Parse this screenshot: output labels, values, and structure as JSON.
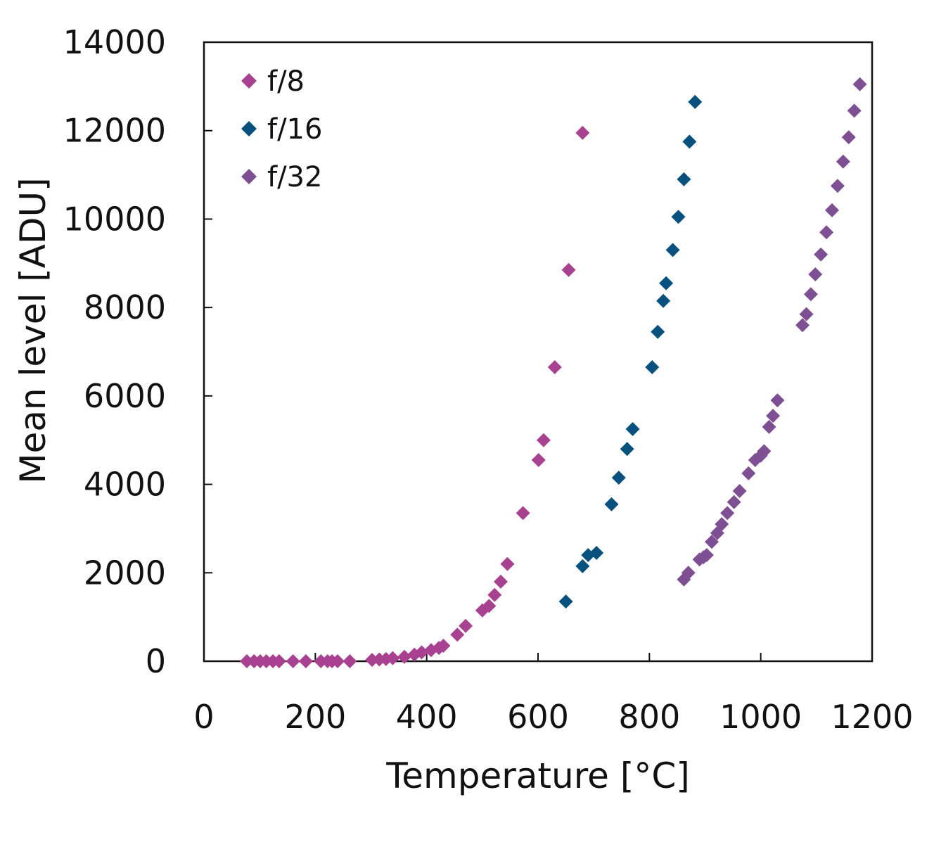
{
  "chart_data": {
    "type": "scatter",
    "xlabel": "Temperature [°C]",
    "ylabel": "Mean level [ADU]",
    "xlim": [
      0,
      1200
    ],
    "ylim": [
      0,
      14000
    ],
    "xticks": [
      0,
      200,
      400,
      600,
      800,
      1000,
      1200
    ],
    "yticks": [
      0,
      2000,
      4000,
      6000,
      8000,
      10000,
      12000,
      14000
    ],
    "grid": false,
    "legend_position": "top-left",
    "marker": "diamond",
    "series": [
      {
        "name": "f/8",
        "color": "#a8418f",
        "points": [
          [
            77,
            0
          ],
          [
            90,
            0
          ],
          [
            101,
            0
          ],
          [
            112,
            0
          ],
          [
            124,
            0
          ],
          [
            135,
            0
          ],
          [
            160,
            0
          ],
          [
            183,
            0
          ],
          [
            210,
            0
          ],
          [
            222,
            0
          ],
          [
            230,
            0
          ],
          [
            240,
            0
          ],
          [
            262,
            0
          ],
          [
            302,
            30
          ],
          [
            315,
            40
          ],
          [
            327,
            50
          ],
          [
            339,
            70
          ],
          [
            360,
            100
          ],
          [
            378,
            150
          ],
          [
            391,
            200
          ],
          [
            408,
            250
          ],
          [
            422,
            300
          ],
          [
            430,
            350
          ],
          [
            455,
            600
          ],
          [
            470,
            800
          ],
          [
            500,
            1150
          ],
          [
            512,
            1250
          ],
          [
            522,
            1500
          ],
          [
            533,
            1800
          ],
          [
            545,
            2200
          ],
          [
            573,
            3350
          ],
          [
            601,
            4550
          ],
          [
            610,
            5000
          ],
          [
            630,
            6650
          ],
          [
            655,
            8850
          ],
          [
            680,
            11950
          ]
        ]
      },
      {
        "name": "f/16",
        "color": "#08517e",
        "points": [
          [
            650,
            1350
          ],
          [
            680,
            2150
          ],
          [
            690,
            2400
          ],
          [
            705,
            2450
          ],
          [
            732,
            3550
          ],
          [
            745,
            4150
          ],
          [
            760,
            4800
          ],
          [
            770,
            5250
          ],
          [
            805,
            6650
          ],
          [
            815,
            7450
          ],
          [
            825,
            8150
          ],
          [
            830,
            8550
          ],
          [
            842,
            9300
          ],
          [
            852,
            10050
          ],
          [
            862,
            10900
          ],
          [
            872,
            11750
          ],
          [
            882,
            12650
          ]
        ]
      },
      {
        "name": "f/32",
        "color": "#7e4f93",
        "points": [
          [
            862,
            1850
          ],
          [
            870,
            2000
          ],
          [
            890,
            2300
          ],
          [
            897,
            2350
          ],
          [
            903,
            2400
          ],
          [
            912,
            2700
          ],
          [
            922,
            2900
          ],
          [
            930,
            3100
          ],
          [
            940,
            3350
          ],
          [
            952,
            3600
          ],
          [
            962,
            3850
          ],
          [
            978,
            4250
          ],
          [
            990,
            4550
          ],
          [
            1000,
            4650
          ],
          [
            1006,
            4750
          ],
          [
            1015,
            5300
          ],
          [
            1022,
            5550
          ],
          [
            1030,
            5900
          ],
          [
            1075,
            7600
          ],
          [
            1082,
            7850
          ],
          [
            1090,
            8300
          ],
          [
            1098,
            8750
          ],
          [
            1108,
            9200
          ],
          [
            1118,
            9700
          ],
          [
            1128,
            10200
          ],
          [
            1138,
            10750
          ],
          [
            1148,
            11300
          ],
          [
            1158,
            11850
          ],
          [
            1168,
            12450
          ],
          [
            1178,
            13050
          ]
        ]
      }
    ]
  }
}
